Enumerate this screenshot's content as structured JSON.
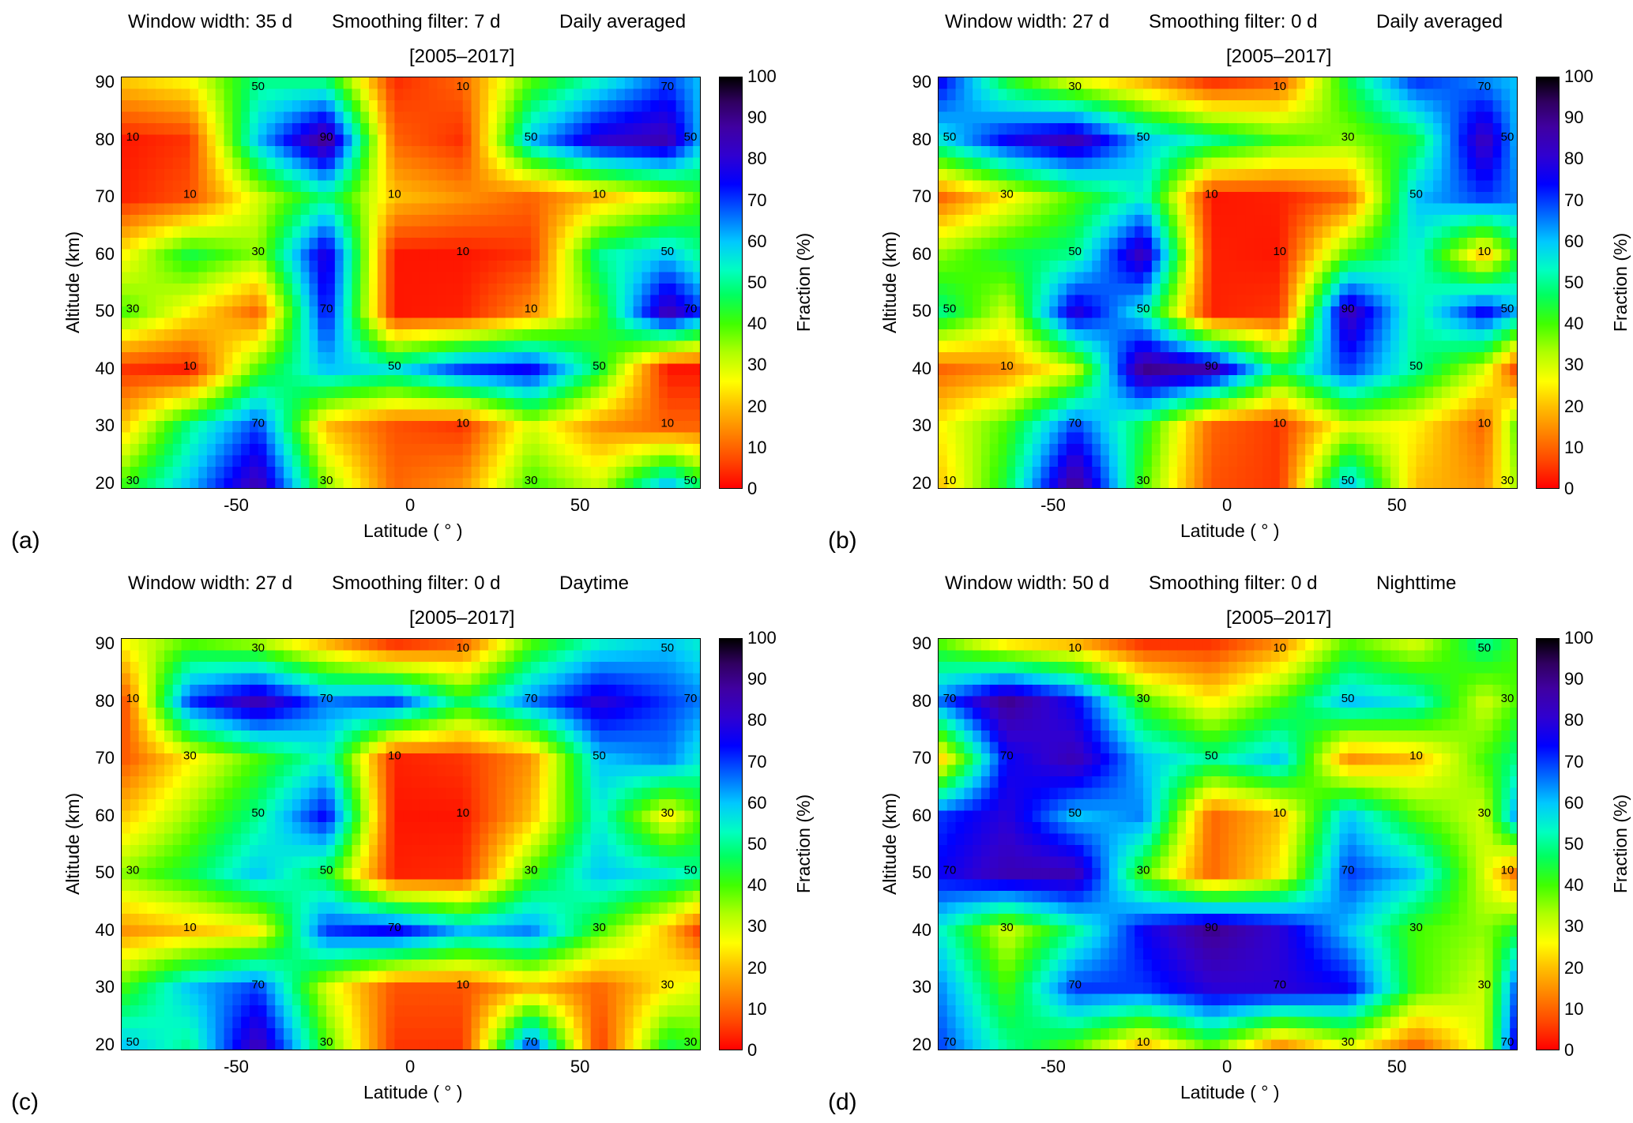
{
  "chart_data": [
    {
      "type": "heatmap",
      "panel_label": "(a)",
      "header": {
        "window": "Window width: 35 d",
        "smoothing": "Smoothing filter: 7 d",
        "mode": "Daily averaged"
      },
      "period": "[2005–2017]",
      "xlabel": "Latitude ( ° )",
      "ylabel": "Altitude (km)",
      "colorbar_label": "Fraction (%)",
      "xlim": [
        -85,
        85
      ],
      "ylim": [
        19,
        91
      ],
      "x_ticks": [
        "-50",
        "0",
        "50"
      ],
      "y_ticks": [
        "20",
        "30",
        "40",
        "50",
        "60",
        "70",
        "80",
        "90"
      ],
      "colorbar_ticks": [
        "0",
        "10",
        "20",
        "30",
        "40",
        "50",
        "60",
        "70",
        "80",
        "90",
        "100"
      ],
      "contour_labels": [
        "10",
        "30",
        "50",
        "70",
        "90"
      ],
      "lat": [
        -85,
        -65,
        -45,
        -25,
        -5,
        15,
        35,
        55,
        75,
        85
      ],
      "alt": [
        20,
        30,
        40,
        50,
        60,
        70,
        80,
        90
      ],
      "values": [
        [
          40,
          60,
          85,
          35,
          10,
          15,
          40,
          30,
          60,
          45
        ],
        [
          20,
          50,
          70,
          20,
          8,
          5,
          30,
          15,
          10,
          10
        ],
        [
          5,
          3,
          40,
          60,
          55,
          70,
          75,
          45,
          2,
          2
        ],
        [
          40,
          25,
          10,
          75,
          2,
          3,
          15,
          40,
          85,
          70
        ],
        [
          25,
          45,
          35,
          80,
          2,
          2,
          5,
          50,
          60,
          50
        ],
        [
          3,
          8,
          30,
          50,
          20,
          15,
          10,
          20,
          30,
          40
        ],
        [
          2,
          5,
          60,
          90,
          10,
          4,
          60,
          80,
          85,
          60
        ],
        [
          20,
          25,
          50,
          50,
          4,
          10,
          40,
          55,
          70,
          60
        ]
      ]
    },
    {
      "type": "heatmap",
      "panel_label": "(b)",
      "header": {
        "window": "Window width: 27 d",
        "smoothing": "Smoothing filter: 0 d",
        "mode": "Daily averaged"
      },
      "period": "[2005–2017]",
      "xlabel": "Latitude ( ° )",
      "ylabel": "Altitude (km)",
      "colorbar_label": "Fraction (%)",
      "xlim": [
        -85,
        85
      ],
      "ylim": [
        19,
        91
      ],
      "x_ticks": [
        "-50",
        "0",
        "50"
      ],
      "y_ticks": [
        "20",
        "30",
        "40",
        "50",
        "60",
        "70",
        "80",
        "90"
      ],
      "colorbar_ticks": [
        "0",
        "10",
        "20",
        "30",
        "40",
        "50",
        "60",
        "70",
        "80",
        "90",
        "100"
      ],
      "contour_labels": [
        "10",
        "30",
        "50",
        "70",
        "90"
      ],
      "lat": [
        -85,
        -65,
        -45,
        -25,
        -5,
        15,
        35,
        55,
        75,
        85
      ],
      "alt": [
        20,
        30,
        40,
        50,
        60,
        70,
        80,
        90
      ],
      "values": [
        [
          20,
          45,
          90,
          40,
          8,
          5,
          60,
          20,
          15,
          35
        ],
        [
          25,
          40,
          70,
          45,
          10,
          5,
          30,
          25,
          10,
          40
        ],
        [
          10,
          15,
          30,
          90,
          85,
          45,
          70,
          50,
          30,
          5
        ],
        [
          50,
          30,
          80,
          55,
          3,
          5,
          85,
          50,
          75,
          60
        ],
        [
          35,
          45,
          50,
          85,
          3,
          2,
          40,
          55,
          20,
          45
        ],
        [
          10,
          25,
          40,
          55,
          2,
          3,
          10,
          60,
          70,
          65
        ],
        [
          55,
          75,
          85,
          60,
          50,
          40,
          35,
          45,
          85,
          60
        ],
        [
          75,
          45,
          30,
          20,
          5,
          10,
          45,
          70,
          65,
          60
        ]
      ]
    },
    {
      "type": "heatmap",
      "panel_label": "(c)",
      "header": {
        "window": "Window width: 27 d",
        "smoothing": "Smoothing filter: 0 d",
        "mode": "Daytime"
      },
      "period": "[2005–2017]",
      "xlabel": "Latitude ( ° )",
      "ylabel": "Altitude (km)",
      "colorbar_label": "Fraction (%)",
      "xlim": [
        -85,
        85
      ],
      "ylim": [
        19,
        91
      ],
      "x_ticks": [
        "-50",
        "0",
        "50"
      ],
      "y_ticks": [
        "20",
        "30",
        "40",
        "50",
        "60",
        "70",
        "80",
        "90"
      ],
      "colorbar_ticks": [
        "0",
        "10",
        "20",
        "30",
        "40",
        "50",
        "60",
        "70",
        "80",
        "90",
        "100"
      ],
      "contour_labels": [
        "10",
        "30",
        "50",
        "70",
        "90"
      ],
      "lat": [
        -85,
        -65,
        -45,
        -25,
        -5,
        15,
        35,
        55,
        75,
        85
      ],
      "alt": [
        20,
        30,
        40,
        50,
        60,
        70,
        80,
        90
      ],
      "values": [
        [
          60,
          50,
          85,
          40,
          5,
          5,
          70,
          5,
          45,
          40
        ],
        [
          40,
          60,
          70,
          30,
          8,
          8,
          20,
          10,
          25,
          30
        ],
        [
          15,
          20,
          25,
          70,
          75,
          60,
          65,
          40,
          20,
          5
        ],
        [
          35,
          45,
          60,
          45,
          3,
          4,
          40,
          60,
          55,
          50
        ],
        [
          20,
          35,
          50,
          75,
          2,
          2,
          20,
          55,
          25,
          40
        ],
        [
          8,
          25,
          40,
          55,
          3,
          5,
          15,
          60,
          65,
          55
        ],
        [
          5,
          70,
          85,
          65,
          70,
          45,
          65,
          80,
          70,
          65
        ],
        [
          25,
          40,
          35,
          20,
          5,
          10,
          40,
          55,
          60,
          55
        ]
      ]
    },
    {
      "type": "heatmap",
      "panel_label": "(d)",
      "header": {
        "window": "Window width: 50 d",
        "smoothing": "Smoothing filter: 0 d",
        "mode": "Nighttime"
      },
      "period": "[2005–2017]",
      "xlabel": "Latitude ( ° )",
      "ylabel": "Altitude (km)",
      "colorbar_label": "Fraction (%)",
      "xlim": [
        -85,
        85
      ],
      "ylim": [
        19,
        91
      ],
      "x_ticks": [
        "-50",
        "0",
        "50"
      ],
      "y_ticks": [
        "20",
        "30",
        "40",
        "50",
        "60",
        "70",
        "80",
        "90"
      ],
      "colorbar_ticks": [
        "0",
        "10",
        "20",
        "30",
        "40",
        "50",
        "60",
        "70",
        "80",
        "90",
        "100"
      ],
      "contour_labels": [
        "10",
        "30",
        "50",
        "70",
        "90"
      ],
      "lat": [
        -85,
        -65,
        -45,
        -25,
        -5,
        15,
        35,
        55,
        75,
        85
      ],
      "alt": [
        20,
        30,
        40,
        50,
        60,
        70,
        80,
        90
      ],
      "values": [
        [
          70,
          50,
          40,
          20,
          40,
          15,
          30,
          10,
          30,
          80
        ],
        [
          65,
          40,
          70,
          70,
          80,
          80,
          75,
          40,
          30,
          70
        ],
        [
          55,
          30,
          50,
          75,
          90,
          80,
          60,
          40,
          35,
          45
        ],
        [
          75,
          85,
          85,
          40,
          10,
          25,
          70,
          60,
          30,
          10
        ],
        [
          70,
          80,
          60,
          65,
          10,
          20,
          60,
          40,
          30,
          65
        ],
        [
          20,
          75,
          85,
          60,
          50,
          60,
          15,
          20,
          40,
          50
        ],
        [
          65,
          90,
          75,
          40,
          25,
          40,
          60,
          55,
          30,
          40
        ],
        [
          40,
          25,
          20,
          5,
          5,
          15,
          40,
          30,
          50,
          40
        ]
      ]
    }
  ]
}
